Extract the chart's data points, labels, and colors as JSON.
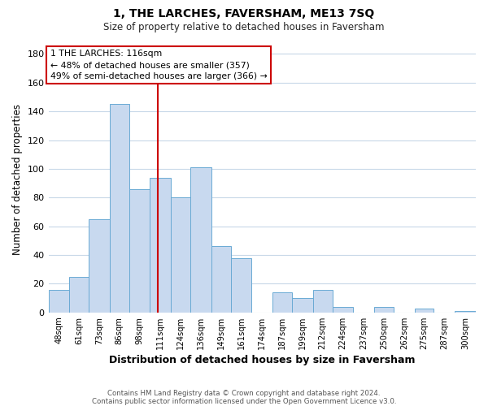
{
  "title": "1, THE LARCHES, FAVERSHAM, ME13 7SQ",
  "subtitle": "Size of property relative to detached houses in Faversham",
  "xlabel": "Distribution of detached houses by size in Faversham",
  "ylabel": "Number of detached properties",
  "bar_labels": [
    "48sqm",
    "61sqm",
    "73sqm",
    "86sqm",
    "98sqm",
    "111sqm",
    "124sqm",
    "136sqm",
    "149sqm",
    "161sqm",
    "174sqm",
    "187sqm",
    "199sqm",
    "212sqm",
    "224sqm",
    "237sqm",
    "250sqm",
    "262sqm",
    "275sqm",
    "287sqm",
    "300sqm"
  ],
  "bar_values": [
    16,
    25,
    65,
    145,
    86,
    94,
    80,
    101,
    46,
    38,
    0,
    14,
    10,
    16,
    4,
    0,
    4,
    0,
    3,
    0,
    1
  ],
  "bar_edges": [
    48,
    61,
    73,
    86,
    98,
    111,
    124,
    136,
    149,
    161,
    174,
    187,
    199,
    212,
    224,
    237,
    250,
    262,
    275,
    287,
    300
  ],
  "bar_color": "#c8d9ef",
  "bar_edgecolor": "#6aaad4",
  "vline_x": 116,
  "vline_color": "#cc0000",
  "ylim": [
    0,
    185
  ],
  "yticks": [
    0,
    20,
    40,
    60,
    80,
    100,
    120,
    140,
    160,
    180
  ],
  "annotation_title": "1 THE LARCHES: 116sqm",
  "annotation_line1": "← 48% of detached houses are smaller (357)",
  "annotation_line2": "49% of semi-detached houses are larger (366) →",
  "footer1": "Contains HM Land Registry data © Crown copyright and database right 2024.",
  "footer2": "Contains public sector information licensed under the Open Government Licence v3.0.",
  "background_color": "#ffffff",
  "grid_color": "#c8d8e8"
}
